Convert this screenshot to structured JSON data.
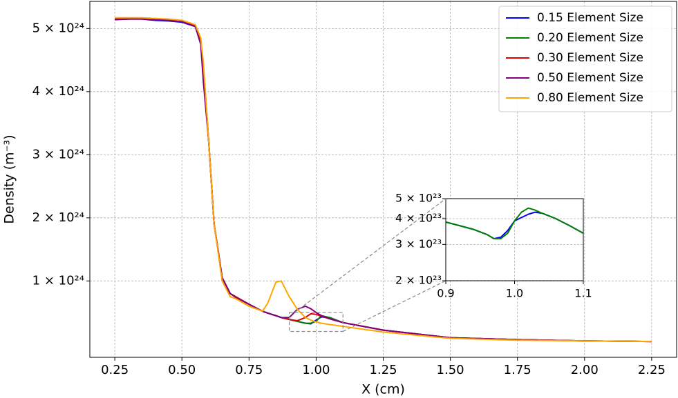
{
  "chart_data": [
    {
      "type": "line",
      "xlabel": "X (cm)",
      "ylabel": "Density (m⁻³)",
      "x": [
        0.25,
        0.3,
        0.35,
        0.4,
        0.45,
        0.5,
        0.55,
        0.57,
        0.58,
        0.6,
        0.62,
        0.65,
        0.68,
        0.7,
        0.75,
        0.8,
        0.82,
        0.85,
        0.87,
        0.9,
        0.93,
        0.96,
        0.98,
        1.0,
        1.02,
        1.05,
        1.1,
        1.25,
        1.5,
        1.75,
        2.0,
        2.25
      ],
      "series": [
        {
          "name": "0.15 Element Size",
          "color": "#0000ff",
          "values": [
            5.14e+24,
            5.15e+24,
            5.15e+24,
            5.13e+24,
            5.12e+24,
            5.1e+24,
            5.03e+24,
            4.8e+24,
            4.4e+24,
            3.2e+24,
            1.9e+24,
            1.05e+24,
            8e+23,
            7.5e+23,
            6.3e+23,
            5.2e+23,
            4.9e+23,
            4.5e+23,
            4.2e+23,
            3.9e+23,
            3.6e+23,
            3.3e+23,
            3.2e+23,
            3.8e+23,
            4.3e+23,
            4.2e+23,
            3.4e+23,
            2.2e+23,
            1e+23,
            7e+22,
            5e+22,
            4e+22
          ]
        },
        {
          "name": "0.20 Element Size",
          "color": "#008000",
          "values": [
            5.15e+24,
            5.15e+24,
            5.16e+24,
            5.14e+24,
            5.13e+24,
            5.11e+24,
            5.04e+24,
            4.8e+24,
            4.4e+24,
            3.2e+24,
            1.9e+24,
            1.05e+24,
            8e+23,
            7.5e+23,
            6.3e+23,
            5.2e+23,
            4.9e+23,
            4.5e+23,
            4.2e+23,
            3.9e+23,
            3.6e+23,
            3.3e+23,
            3.3e+23,
            3.6e+23,
            4.5e+23,
            4.2e+23,
            3.4e+23,
            2.2e+23,
            1e+23,
            7e+22,
            5e+22,
            4e+22
          ]
        },
        {
          "name": "0.30 Element Size",
          "color": "#e00000",
          "values": [
            5.15e+24,
            5.15e+24,
            5.16e+24,
            5.15e+24,
            5.14e+24,
            5.12e+24,
            5.04e+24,
            4.8e+24,
            4.4e+24,
            3.2e+24,
            1.9e+24,
            1.05e+24,
            8e+23,
            7.5e+23,
            6.3e+23,
            5.2e+23,
            4.9e+23,
            4.5e+23,
            4.2e+23,
            3.9e+23,
            3.7e+23,
            4.2e+23,
            4.8e+23,
            4.7e+23,
            4.4e+23,
            4e+23,
            3.4e+23,
            2.2e+23,
            1e+23,
            7e+22,
            5e+22,
            4e+22
          ]
        },
        {
          "name": "0.50 Element Size",
          "color": "#800080",
          "values": [
            5.14e+24,
            5.15e+24,
            5.15e+24,
            5.14e+24,
            5.13e+24,
            5.11e+24,
            5.03e+24,
            4.75e+24,
            4.15e+24,
            3.2e+24,
            1.9e+24,
            1.05e+24,
            8e+23,
            7.4e+23,
            6.3e+23,
            5.2e+23,
            4.9e+23,
            4.5e+23,
            4.2e+23,
            4.2e+23,
            5.5e+23,
            6e+23,
            5.6e+23,
            5e+23,
            4.5e+23,
            4e+23,
            3.4e+23,
            2.2e+23,
            1e+23,
            7e+22,
            5e+22,
            4e+22
          ]
        },
        {
          "name": "0.80 Element Size",
          "color": "#ffa500",
          "values": [
            5.17e+24,
            5.17e+24,
            5.17e+24,
            5.16e+24,
            5.15e+24,
            5.13e+24,
            5.06e+24,
            4.85e+24,
            4.45e+24,
            3.2e+24,
            1.9e+24,
            1e+24,
            7.5e+23,
            7.2e+23,
            6e+23,
            5.2e+23,
            6.5e+23,
            9.8e+23,
            1e+24,
            7.5e+23,
            5.5e+23,
            4.2e+23,
            3.8e+23,
            3.5e+23,
            3.3e+23,
            3.1e+23,
            2.8e+23,
            1.9e+23,
            9e+22,
            6e+22,
            5e+22,
            4e+22
          ]
        }
      ],
      "xlim": [
        0.157,
        2.343
      ],
      "ylim": [
        -2.1e+23,
        5.43e+24
      ],
      "xticks": [
        0.25,
        {
          "value": 0.5,
          "label": "0.50"
        },
        0.75,
        {
          "value": 1,
          "label": "1.00"
        },
        1.25,
        {
          "value": 1.5,
          "label": "1.50"
        },
        1.75,
        {
          "value": 2,
          "label": "2.00"
        },
        2.25
      ],
      "yticks": [
        {
          "value": 1e+24,
          "label": "1 × 10²⁴"
        },
        {
          "value": 2e+24,
          "label": "2 × 10²⁴"
        },
        {
          "value": 3e+24,
          "label": "3 × 10²⁴"
        },
        {
          "value": 4e+24,
          "label": "4 × 10²⁴"
        },
        {
          "value": 5e+24,
          "label": "5 × 10²⁴"
        }
      ],
      "grid": true,
      "legend": "upper right"
    },
    {
      "type": "line",
      "yscale": "log",
      "x": [
        0.9,
        0.92,
        0.94,
        0.96,
        0.97,
        0.98,
        0.99,
        1.0,
        1.01,
        1.02,
        1.03,
        1.04,
        1.06,
        1.08,
        1.1
      ],
      "series": [
        {
          "color": "#0000ff",
          "values": [
            3.85e+23,
            3.7e+23,
            3.55e+23,
            3.35e+23,
            3.2e+23,
            3.25e+23,
            3.5e+23,
            3.9e+23,
            4.05e+23,
            4.2e+23,
            4.3e+23,
            4.25e+23,
            4e+23,
            3.7e+23,
            3.4e+23
          ]
        },
        {
          "color": "#008000",
          "values": [
            3.85e+23,
            3.7e+23,
            3.55e+23,
            3.35e+23,
            3.2e+23,
            3.2e+23,
            3.4e+23,
            3.9e+23,
            4.3e+23,
            4.5e+23,
            4.4e+23,
            4.25e+23,
            4e+23,
            3.7e+23,
            3.4e+23
          ]
        }
      ],
      "xlim": [
        0.9,
        1.1
      ],
      "ylim": [
        2e+23,
        5e+23
      ],
      "xticks": [
        0.9,
        {
          "value": 1,
          "label": "1.0"
        },
        1.1
      ],
      "yticks": [
        {
          "value": 2e+23,
          "label": "2 × 10²³"
        },
        {
          "value": 3e+23,
          "label": "3 × 10²³"
        },
        {
          "value": 4e+23,
          "label": "4 × 10²³"
        },
        {
          "value": 5e+23,
          "label": "5 × 10²³"
        }
      ],
      "grid": true
    }
  ]
}
